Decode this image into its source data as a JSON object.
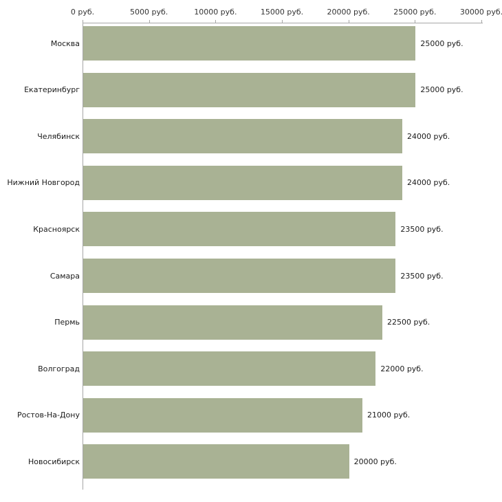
{
  "chart_data": {
    "type": "bar",
    "orientation": "horizontal",
    "title": "",
    "xlabel": "",
    "ylabel": "",
    "categories": [
      "Москва",
      "Екатеринбург",
      "Челябинск",
      "Нижний Новгород",
      "Красноярск",
      "Самара",
      "Пермь",
      "Волгоград",
      "Ростов-На-Дону",
      "Новосибирск"
    ],
    "values": [
      25000,
      25000,
      24000,
      24000,
      23500,
      23500,
      22500,
      22000,
      21000,
      20000
    ],
    "value_labels": [
      "25000 руб.",
      "25000 руб.",
      "24000 руб.",
      "24000 руб.",
      "23500 руб.",
      "23500 руб.",
      "22500 руб.",
      "22000 руб.",
      "21000 руб.",
      "20000 руб."
    ],
    "x_ticks": [
      0,
      5000,
      10000,
      15000,
      20000,
      25000,
      30000
    ],
    "x_tick_labels": [
      "0 руб.",
      "5000 руб.",
      "10000 руб.",
      "15000 руб.",
      "20000 руб.",
      "25000 руб.",
      "30000 руб."
    ],
    "xlim": [
      0,
      30000
    ],
    "grid": false,
    "legend": false,
    "bar_color": "#a9b294",
    "axis_color": "#a6a6a6"
  }
}
